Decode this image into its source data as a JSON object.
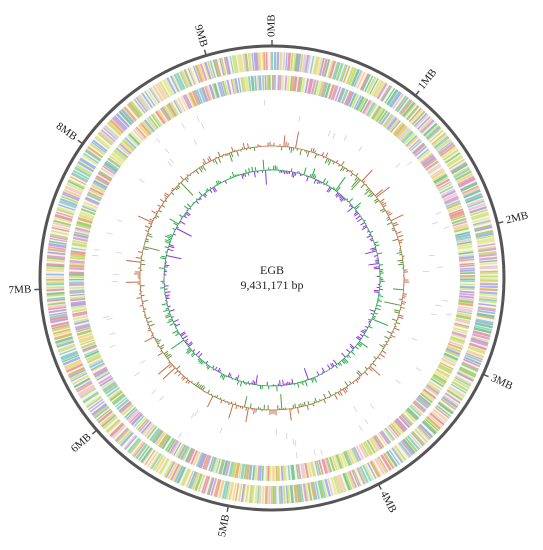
{
  "genome": {
    "name": "EGB",
    "size_label": "9,431,171 bp"
  },
  "ticks": [
    "0MB",
    "1MB",
    "2MB",
    "3MB",
    "4MB",
    "5MB",
    "6MB",
    "7MB",
    "8MB",
    "9MB"
  ]
}
